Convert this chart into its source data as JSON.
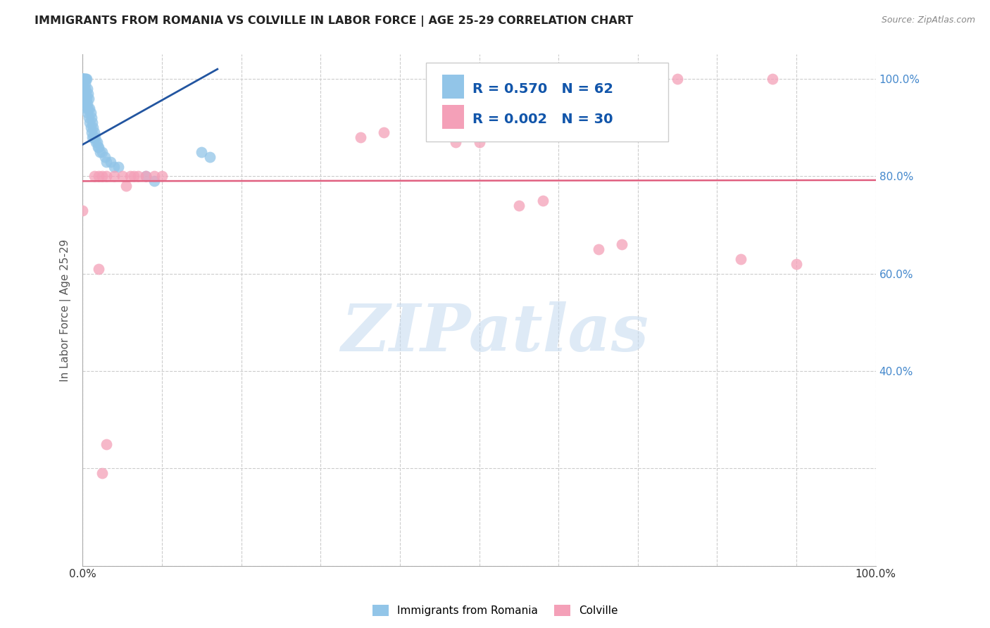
{
  "title": "IMMIGRANTS FROM ROMANIA VS COLVILLE IN LABOR FORCE | AGE 25-29 CORRELATION CHART",
  "source": "Source: ZipAtlas.com",
  "ylabel": "In Labor Force | Age 25-29",
  "xlim": [
    0.0,
    1.0
  ],
  "ylim": [
    0.0,
    1.05
  ],
  "romania_R": 0.57,
  "romania_N": 62,
  "colville_R": 0.002,
  "colville_N": 30,
  "romania_color": "#92C5E8",
  "colville_color": "#F4A0B8",
  "romania_line_color": "#2255A0",
  "colville_line_color": "#E06080",
  "watermark_text": "ZIPatlas",
  "watermark_color": "#C8DCF0",
  "romania_x": [
    0.001,
    0.001,
    0.001,
    0.001,
    0.001,
    0.002,
    0.002,
    0.002,
    0.003,
    0.003,
    0.003,
    0.003,
    0.004,
    0.004,
    0.004,
    0.005,
    0.005,
    0.005,
    0.006,
    0.006,
    0.006,
    0.007,
    0.007,
    0.008,
    0.008,
    0.009,
    0.009,
    0.01,
    0.01,
    0.011,
    0.011,
    0.012,
    0.012,
    0.013,
    0.014,
    0.015,
    0.016,
    0.017,
    0.018,
    0.019,
    0.02,
    0.022,
    0.025,
    0.028,
    0.03,
    0.035,
    0.04,
    0.045,
    0.08,
    0.09,
    0.15,
    0.16,
    0.0,
    0.0,
    0.0,
    0.0,
    0.0,
    0.0,
    0.0,
    0.0,
    0.0,
    0.0
  ],
  "romania_y": [
    1.0,
    1.0,
    1.0,
    1.0,
    0.98,
    1.0,
    1.0,
    0.97,
    1.0,
    0.99,
    0.98,
    0.96,
    1.0,
    0.97,
    0.95,
    1.0,
    0.96,
    0.94,
    0.98,
    0.95,
    0.93,
    0.97,
    0.94,
    0.96,
    0.92,
    0.94,
    0.91,
    0.93,
    0.9,
    0.92,
    0.89,
    0.91,
    0.88,
    0.9,
    0.88,
    0.89,
    0.88,
    0.87,
    0.87,
    0.86,
    0.86,
    0.85,
    0.85,
    0.84,
    0.83,
    0.83,
    0.82,
    0.82,
    0.8,
    0.79,
    0.85,
    0.84,
    1.0,
    1.0,
    1.0,
    1.0,
    1.0,
    0.99,
    0.98,
    0.97,
    0.96,
    0.95
  ],
  "colville_x": [
    0.0,
    0.015,
    0.02,
    0.025,
    0.03,
    0.04,
    0.05,
    0.055,
    0.06,
    0.065,
    0.07,
    0.08,
    0.09,
    0.1,
    0.35,
    0.38,
    0.47,
    0.5,
    0.55,
    0.58,
    0.65,
    0.68,
    0.72,
    0.75,
    0.83,
    0.87,
    0.9,
    0.02,
    0.025,
    0.03
  ],
  "colville_y": [
    0.73,
    0.8,
    0.8,
    0.8,
    0.8,
    0.8,
    0.8,
    0.78,
    0.8,
    0.8,
    0.8,
    0.8,
    0.8,
    0.8,
    0.88,
    0.89,
    0.87,
    0.87,
    0.74,
    0.75,
    0.65,
    0.66,
    1.0,
    1.0,
    0.63,
    1.0,
    0.62,
    0.61,
    0.19,
    0.25
  ]
}
